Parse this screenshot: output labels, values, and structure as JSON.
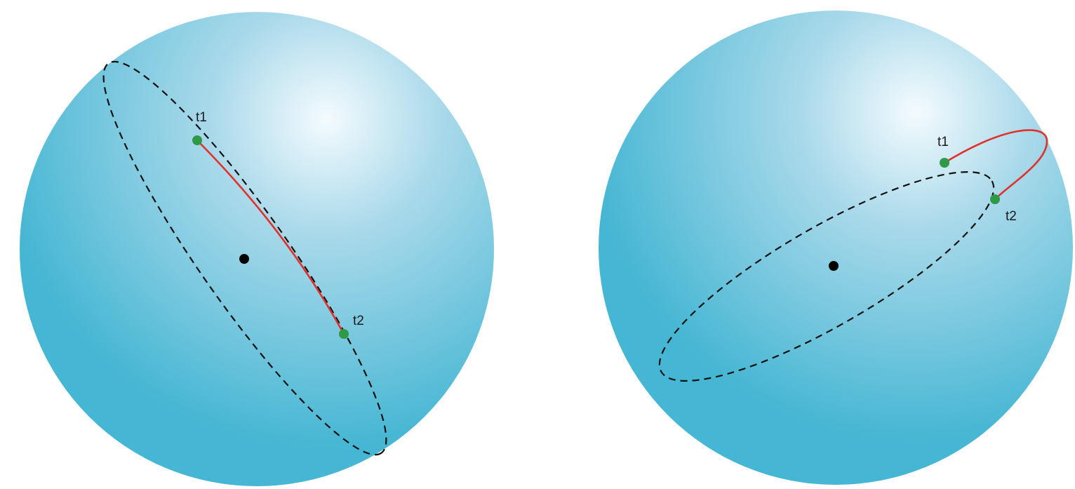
{
  "colors": {
    "sphere_light": "#f4fbfe",
    "sphere_mid": "#a9d9ea",
    "sphere_dark": "#45b6d3",
    "geodesic": "#e0312b",
    "point": "#2e9a48",
    "great_circle": "#111111",
    "center": "#000000"
  },
  "spheres": [
    {
      "points": [
        {
          "label": "t1"
        },
        {
          "label": "t2"
        }
      ]
    },
    {
      "points": [
        {
          "label": "t1"
        },
        {
          "label": "t2"
        }
      ]
    }
  ]
}
